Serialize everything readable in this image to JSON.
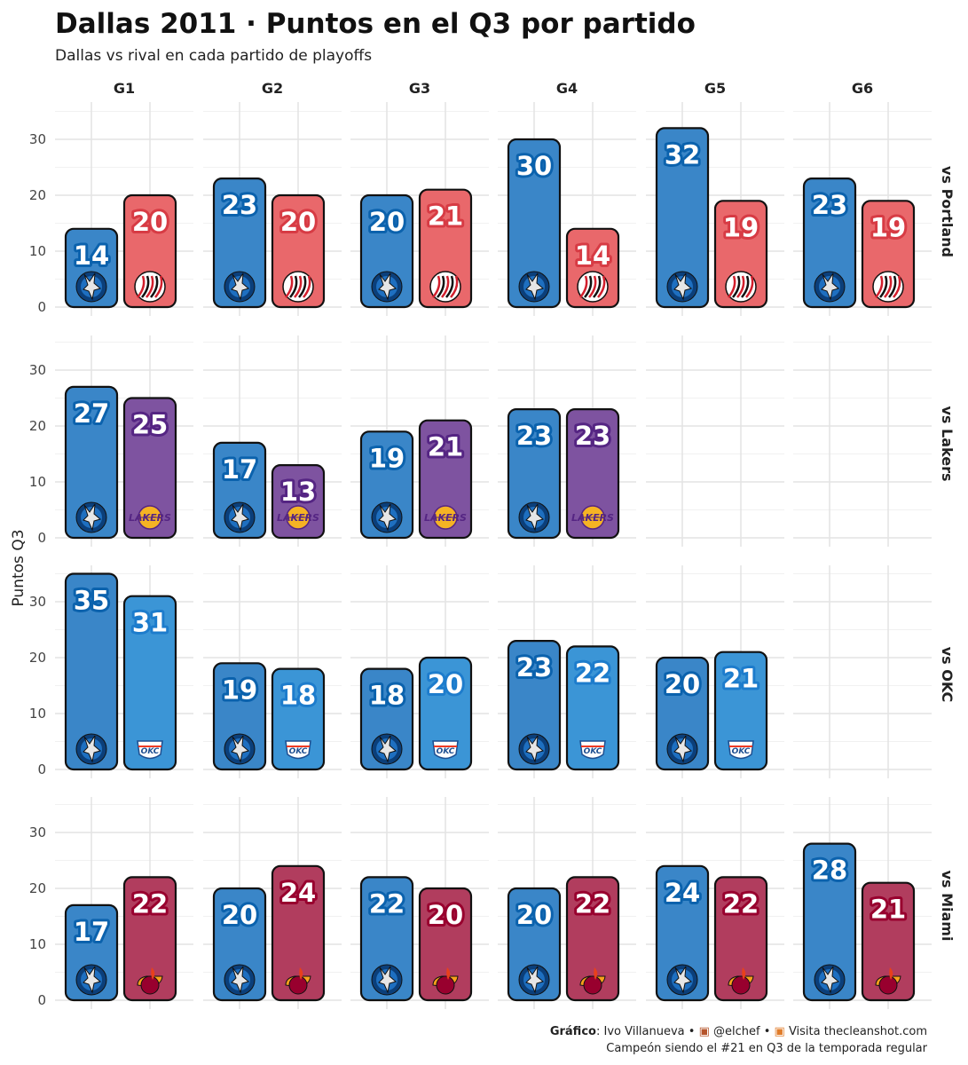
{
  "chart_data": {
    "type": "bar",
    "title": "Dallas 2011 · Puntos en el Q3 por partido",
    "subtitle": "Dallas vs rival en cada partido de playoffs",
    "ylabel": "Puntos Q3",
    "ylim": [
      0,
      37
    ],
    "yticks": [
      0,
      10,
      20,
      30
    ],
    "grid": true,
    "columns": [
      "G1",
      "G2",
      "G3",
      "G4",
      "G5",
      "G6"
    ],
    "rows": [
      {
        "label": "vs Portland",
        "opponent": "Portland",
        "logo": "trail-blazers-logo",
        "color": "#e9686b",
        "label_stroke": "#d73b44",
        "dallas": [
          14,
          23,
          20,
          30,
          32,
          23
        ],
        "rival": [
          20,
          20,
          21,
          14,
          19,
          19
        ]
      },
      {
        "label": "vs Lakers",
        "opponent": "Lakers",
        "logo": "lakers-logo",
        "color": "#7e53a0",
        "label_stroke": "#552583",
        "dallas": [
          27,
          17,
          19,
          23
        ],
        "rival": [
          25,
          13,
          21,
          23
        ]
      },
      {
        "label": "vs OKC",
        "opponent": "OKC",
        "logo": "thunder-logo",
        "color": "#3b95d6",
        "label_stroke": "#1d7ccc",
        "dallas": [
          35,
          19,
          18,
          23,
          20
        ],
        "rival": [
          31,
          18,
          20,
          22,
          21
        ]
      },
      {
        "label": "vs Miami",
        "opponent": "Miami",
        "logo": "heat-logo",
        "color": "#b13d5e",
        "label_stroke": "#98002e",
        "dallas": [
          17,
          20,
          22,
          20,
          24,
          28
        ],
        "rival": [
          22,
          24,
          20,
          22,
          22,
          21
        ]
      }
    ],
    "dallas_color": "#3a86c8",
    "dallas_label_stroke": "#0b62ad"
  },
  "caption": {
    "line1_bold": "Gráfico",
    "line1_rest": ": Ivo Villanueva • ",
    "x_handle": "@elchef",
    "sep": " • ",
    "site": "Visita thecleanshot.com",
    "line2": "Campeón siendo el #21 en Q3 de la temporada regular"
  }
}
